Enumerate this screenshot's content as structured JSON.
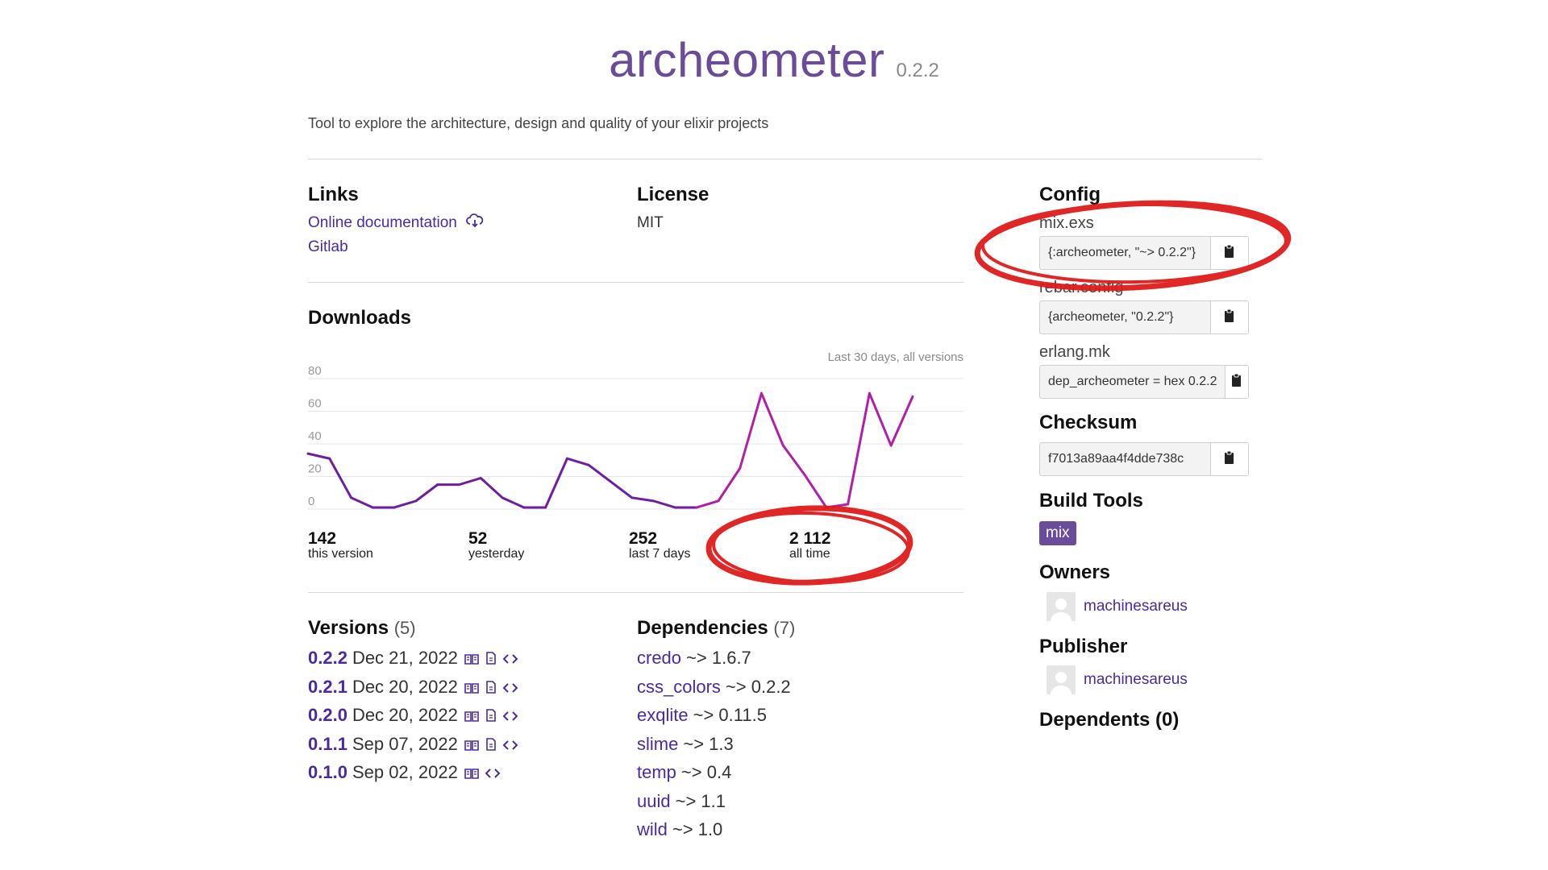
{
  "package": {
    "name": "archeometer",
    "version": "0.2.2",
    "description": "Tool to explore the architecture, design and quality of your elixir projects"
  },
  "links": {
    "heading": "Links",
    "items": [
      {
        "label": "Online documentation",
        "icon": "cloud-download-icon"
      },
      {
        "label": "Gitlab"
      }
    ]
  },
  "license": {
    "heading": "License",
    "value": "MIT"
  },
  "downloads": {
    "heading": "Downloads",
    "note": "Last 30 days, all versions",
    "stats": [
      {
        "value": "142",
        "label": "this version"
      },
      {
        "value": "52",
        "label": "yesterday"
      },
      {
        "value": "252",
        "label": "last 7 days"
      },
      {
        "value": "2 112",
        "label": "all time"
      }
    ]
  },
  "chart_data": {
    "type": "line",
    "title": "",
    "xlabel": "",
    "ylabel": "",
    "ylim": [
      0,
      80
    ],
    "yticks": [
      "80",
      "60",
      "40",
      "20",
      "0"
    ],
    "series": [
      {
        "name": "",
        "color": "#6f1e9e",
        "values": [
          34,
          31,
          7,
          1,
          1,
          5,
          15,
          15,
          19,
          7,
          1,
          1,
          31,
          27,
          17,
          7,
          5,
          1,
          1,
          5,
          25,
          71,
          39,
          21,
          1,
          3,
          71,
          39,
          69
        ]
      }
    ]
  },
  "versions": {
    "heading": "Versions",
    "count": "(5)",
    "items": [
      {
        "version": "0.2.2",
        "date": "Dec 21, 2022",
        "has_docs": true
      },
      {
        "version": "0.2.1",
        "date": "Dec 20, 2022",
        "has_docs": true
      },
      {
        "version": "0.2.0",
        "date": "Dec 20, 2022",
        "has_docs": true
      },
      {
        "version": "0.1.1",
        "date": "Sep 07, 2022",
        "has_docs": true
      },
      {
        "version": "0.1.0",
        "date": "Sep 02, 2022",
        "has_docs": false
      }
    ]
  },
  "dependencies": {
    "heading": "Dependencies",
    "count": "(7)",
    "items": [
      {
        "name": "credo",
        "req": "~> 1.6.7"
      },
      {
        "name": "css_colors",
        "req": "~> 0.2.2"
      },
      {
        "name": "exqlite",
        "req": "~> 0.11.5"
      },
      {
        "name": "slime",
        "req": "~> 1.3"
      },
      {
        "name": "temp",
        "req": "~> 0.4"
      },
      {
        "name": "uuid",
        "req": "~> 1.1"
      },
      {
        "name": "wild",
        "req": "~> 1.0"
      }
    ]
  },
  "config": {
    "heading": "Config",
    "items": [
      {
        "label": "mix.exs",
        "value": "{:archeometer, \"~> 0.2.2\"}"
      },
      {
        "label": "rebar.config",
        "value": "{archeometer, \"0.2.2\"}"
      },
      {
        "label": "erlang.mk",
        "value": "dep_archeometer = hex 0.2.2"
      }
    ]
  },
  "checksum": {
    "heading": "Checksum",
    "value": "f7013a89aa4f4dde738c"
  },
  "build_tools": {
    "heading": "Build Tools",
    "items": [
      "mix"
    ]
  },
  "owners": {
    "heading": "Owners",
    "items": [
      "machinesareus"
    ]
  },
  "publisher": {
    "heading": "Publisher",
    "items": [
      "machinesareus"
    ]
  },
  "dependents": {
    "heading": "Dependents (0)"
  },
  "annotation_color": "#e01b1b"
}
